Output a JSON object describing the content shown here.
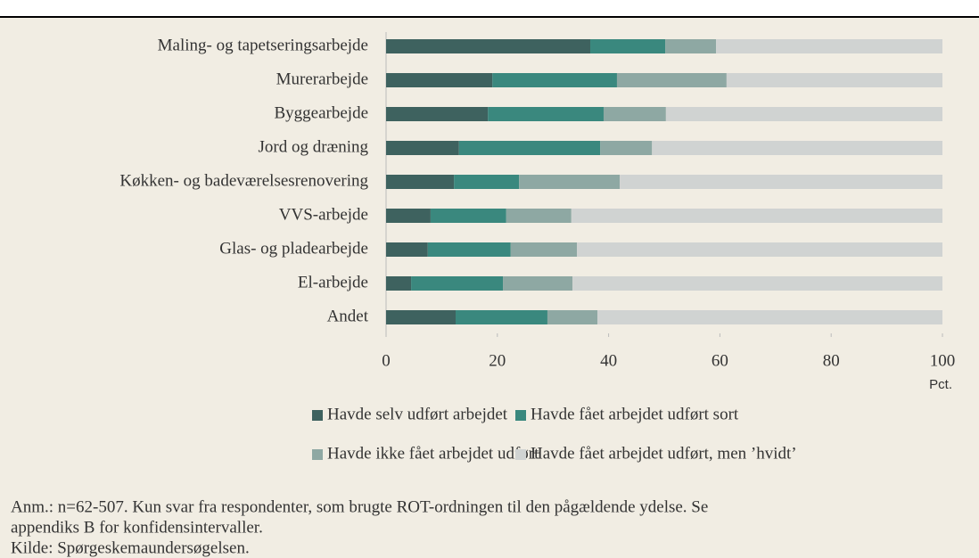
{
  "chart_data": {
    "type": "stacked_barh",
    "categories": [
      "Maling- og tapetseringsarbejde",
      "Murerarbejde",
      "Byggearbejde",
      "Jord og dræning",
      "Køkken- og badeværelsesrenovering",
      "VVS-arbejde",
      "Glas- og pladearbejde",
      "El-arbejde",
      "Andet"
    ],
    "series": [
      {
        "name": "Havde selv udført arbejdet",
        "color": "#3e625f",
        "values": [
          36.7,
          19.1,
          18.3,
          13.1,
          12.2,
          8.0,
          7.5,
          4.5,
          12.5
        ]
      },
      {
        "name": "Havde fået arbejdet udført sort",
        "color": "#3a887e",
        "values": [
          13.5,
          22.4,
          20.8,
          25.4,
          11.7,
          13.6,
          14.9,
          16.5,
          16.5
        ]
      },
      {
        "name": "Havde ikke fået arbejdet udført",
        "color": "#8ea8a3",
        "values": [
          9.1,
          19.7,
          11.2,
          9.3,
          18.1,
          11.7,
          11.9,
          12.5,
          9.0
        ]
      },
      {
        "name": "Havde fået arbejdet udført, men ’hvidt’",
        "color": "#d0d3d2",
        "values": [
          40.7,
          38.8,
          49.7,
          52.2,
          58.0,
          66.7,
          65.7,
          66.5,
          62.0
        ]
      }
    ],
    "xlim": [
      0,
      100
    ],
    "xticks": [
      0,
      20,
      40,
      60,
      80,
      100
    ],
    "xlabel": "Pct.",
    "legend": "bottom",
    "grid": false,
    "notes": [
      "Anm.: n=62-507. Kun svar fra respondenter, som brugte ROT-ordningen til den pågældende ydelse. Se",
      "appendiks B for konfidensintervaller.",
      "Kilde: Spørgeskemaundersøgelsen."
    ]
  }
}
